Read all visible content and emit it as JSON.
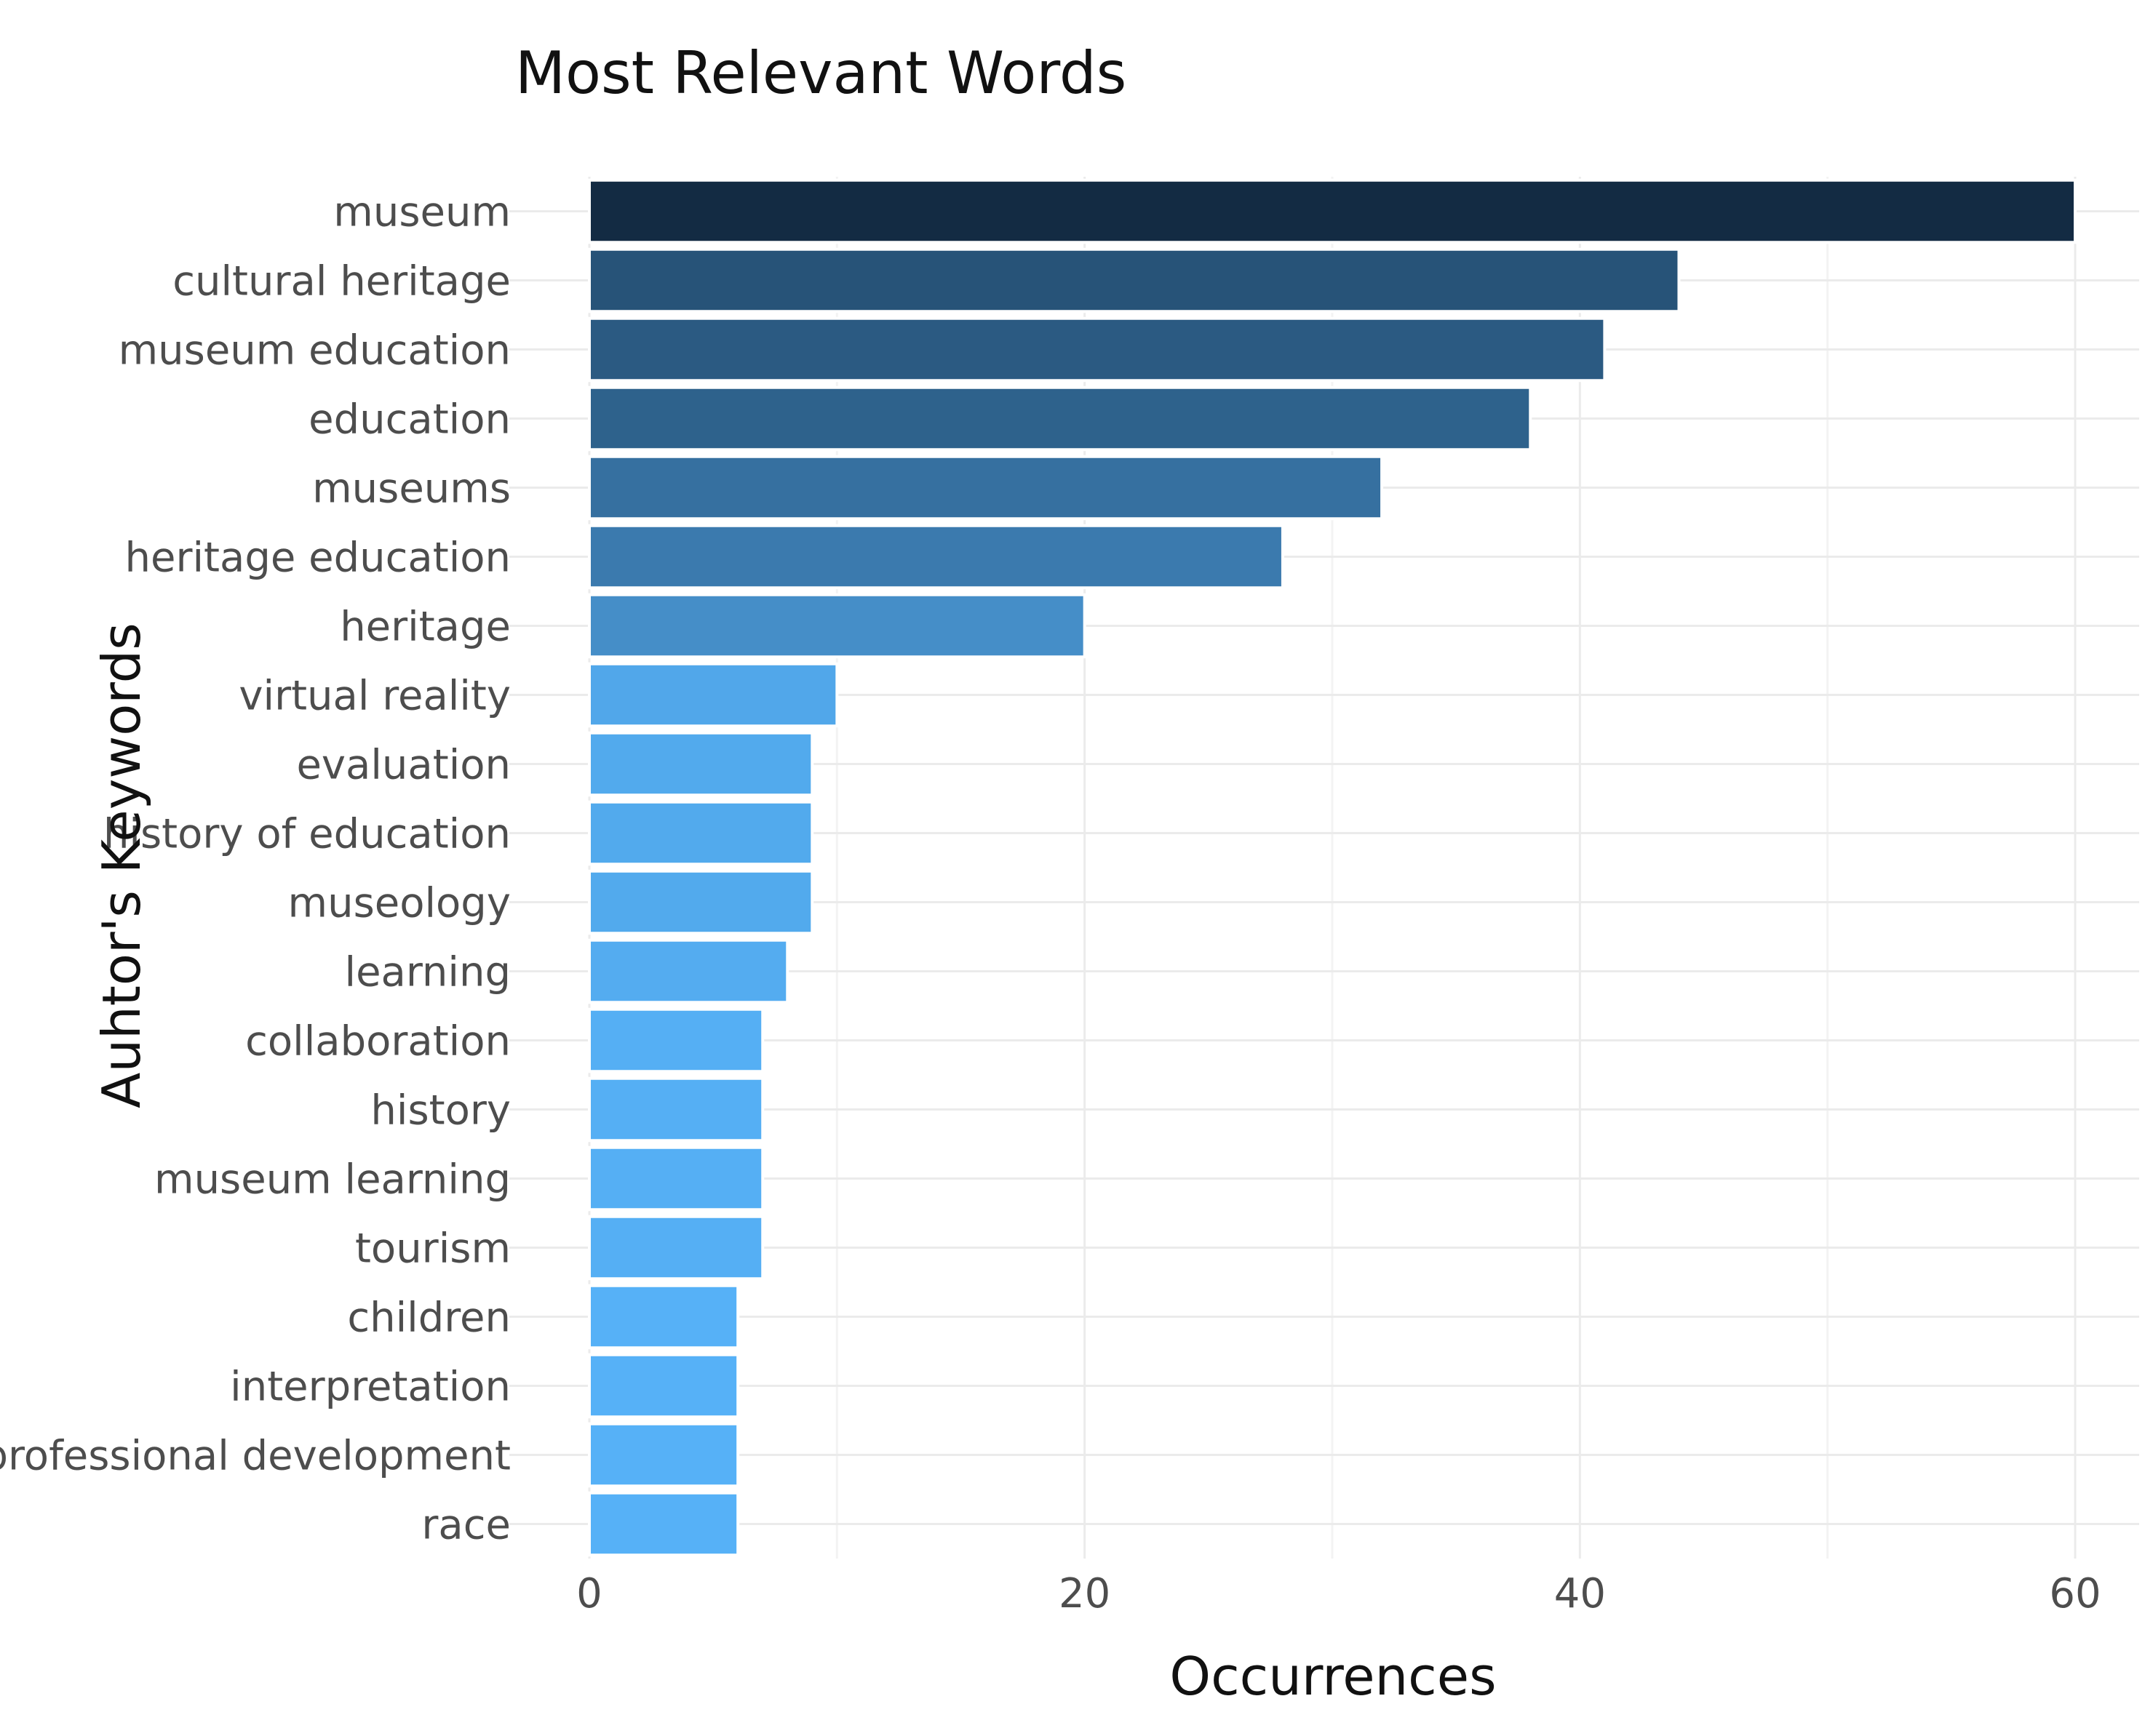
{
  "chart_data": {
    "type": "bar",
    "orientation": "horizontal",
    "title": "Most Relevant Words",
    "xlabel": "Occurrences",
    "ylabel": "Auhtor's Keywords",
    "xlim": [
      0,
      60
    ],
    "xticks": [
      0,
      20,
      40,
      60
    ],
    "grid": true,
    "legend": "none",
    "color_scale": {
      "low": "#56b1f7",
      "high": "#132b43"
    },
    "categories": [
      "museum",
      "cultural heritage",
      "museum education",
      "education",
      "museums",
      "heritage education",
      "heritage",
      "virtual reality",
      "evaluation",
      "history of education",
      "museology",
      "learning",
      "collaboration",
      "history",
      "museum learning",
      "tourism",
      "children",
      "interpretation",
      "professional development",
      "race"
    ],
    "values": [
      60,
      44,
      41,
      38,
      32,
      28,
      20,
      10,
      9,
      9,
      9,
      8,
      7,
      7,
      7,
      7,
      6,
      6,
      6,
      6
    ]
  }
}
